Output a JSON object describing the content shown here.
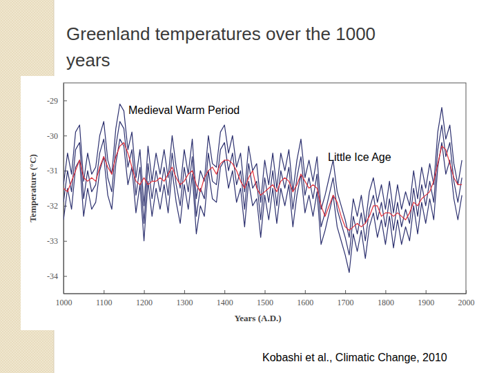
{
  "chart_data": {
    "type": "line",
    "title": "Greenland temperatures over the 1000 years",
    "y_label": "Temperature (°C)",
    "x_label": "Years (A.D.)",
    "annotations": [
      "Medieval Warm Period",
      "Little Ice Age"
    ],
    "source": "Kobashi et al., Climatic Change, 2010",
    "xlim": [
      1000,
      2000
    ],
    "xticks": [
      1000,
      1100,
      1200,
      1300,
      1400,
      1500,
      1600,
      1700,
      1800,
      1900,
      2000
    ],
    "ylim": [
      -34.5,
      -28.5
    ],
    "yticks": [
      -34,
      -33,
      -32,
      -31,
      -30,
      -29
    ],
    "grid": false,
    "x": [
      1000,
      1010,
      1020,
      1030,
      1040,
      1050,
      1060,
      1070,
      1080,
      1090,
      1100,
      1110,
      1120,
      1130,
      1140,
      1150,
      1160,
      1170,
      1180,
      1190,
      1200,
      1210,
      1220,
      1230,
      1240,
      1250,
      1260,
      1270,
      1280,
      1290,
      1300,
      1310,
      1320,
      1330,
      1340,
      1350,
      1360,
      1370,
      1380,
      1390,
      1400,
      1410,
      1420,
      1430,
      1440,
      1450,
      1460,
      1470,
      1480,
      1490,
      1500,
      1510,
      1520,
      1530,
      1540,
      1550,
      1560,
      1570,
      1580,
      1590,
      1600,
      1610,
      1620,
      1630,
      1640,
      1650,
      1660,
      1670,
      1680,
      1690,
      1700,
      1710,
      1720,
      1730,
      1740,
      1750,
      1760,
      1770,
      1780,
      1790,
      1800,
      1810,
      1820,
      1830,
      1840,
      1850,
      1860,
      1870,
      1880,
      1890,
      1900,
      1910,
      1920,
      1930,
      1940,
      1950,
      1960,
      1970,
      1980,
      1990
    ],
    "series": [
      {
        "color": "#2b2f6e",
        "values": [
          -31.4,
          -30.5,
          -31.1,
          -29.9,
          -29.7,
          -31.3,
          -30.5,
          -31.1,
          -30.9,
          -30.0,
          -29.6,
          -30.7,
          -31.1,
          -29.8,
          -29.1,
          -29.3,
          -30.4,
          -29.9,
          -31.2,
          -30.4,
          -32.0,
          -30.3,
          -31.3,
          -30.5,
          -31.1,
          -30.4,
          -31.2,
          -30.0,
          -30.9,
          -31.5,
          -30.4,
          -31.1,
          -30.1,
          -31.8,
          -31.0,
          -31.3,
          -30.0,
          -30.8,
          -30.9,
          -29.9,
          -29.7,
          -30.5,
          -30.0,
          -30.9,
          -30.5,
          -31.6,
          -30.3,
          -31.0,
          -30.8,
          -31.9,
          -30.7,
          -31.4,
          -30.5,
          -31.5,
          -30.5,
          -31.0,
          -30.4,
          -31.6,
          -30.7,
          -30.1,
          -31.2,
          -30.7,
          -31.3,
          -30.6,
          -32.1,
          -31.7,
          -31.2,
          -30.7,
          -31.6,
          -32.0,
          -32.4,
          -32.9,
          -31.8,
          -32.3,
          -31.7,
          -32.5,
          -31.6,
          -31.2,
          -31.9,
          -31.4,
          -32.1,
          -31.3,
          -32.2,
          -31.4,
          -32.1,
          -31.6,
          -32.0,
          -31.0,
          -31.8,
          -30.9,
          -31.5,
          -30.8,
          -31.4,
          -29.9,
          -29.2,
          -30.1,
          -29.7,
          -30.8,
          -31.4,
          -30.7
        ]
      },
      {
        "color": "#2b2f6e",
        "values": [
          -31.9,
          -31.0,
          -31.6,
          -30.4,
          -30.2,
          -31.8,
          -31.0,
          -31.6,
          -31.4,
          -30.5,
          -30.1,
          -31.2,
          -31.6,
          -30.3,
          -29.6,
          -29.8,
          -30.9,
          -30.4,
          -31.7,
          -30.9,
          -32.5,
          -30.8,
          -31.8,
          -31.0,
          -31.6,
          -30.9,
          -31.7,
          -30.5,
          -31.4,
          -32.0,
          -30.9,
          -31.6,
          -30.6,
          -32.3,
          -31.5,
          -31.8,
          -30.5,
          -31.3,
          -31.4,
          -30.4,
          -30.2,
          -31.0,
          -30.5,
          -31.4,
          -31.0,
          -32.1,
          -30.8,
          -31.5,
          -31.3,
          -32.4,
          -31.2,
          -31.9,
          -31.0,
          -32.0,
          -31.0,
          -31.5,
          -30.9,
          -32.1,
          -31.2,
          -30.6,
          -31.7,
          -31.2,
          -31.8,
          -31.1,
          -32.6,
          -32.2,
          -31.7,
          -31.2,
          -32.1,
          -32.5,
          -32.9,
          -33.4,
          -32.3,
          -32.8,
          -32.2,
          -33.0,
          -32.1,
          -31.7,
          -32.4,
          -31.9,
          -32.6,
          -31.8,
          -32.7,
          -31.9,
          -32.6,
          -32.1,
          -32.5,
          -31.5,
          -32.3,
          -31.4,
          -32.0,
          -31.3,
          -31.9,
          -30.4,
          -29.7,
          -30.6,
          -30.2,
          -31.3,
          -31.9,
          -31.2
        ]
      },
      {
        "color": "#2b2f6e",
        "values": [
          -32.4,
          -31.5,
          -32.1,
          -30.9,
          -30.7,
          -32.3,
          -31.5,
          -32.1,
          -31.9,
          -31.0,
          -30.6,
          -31.7,
          -32.1,
          -30.8,
          -30.1,
          -30.3,
          -31.4,
          -30.9,
          -32.2,
          -31.4,
          -33.0,
          -31.3,
          -32.3,
          -31.5,
          -32.1,
          -31.4,
          -32.2,
          -31.0,
          -31.9,
          -32.5,
          -31.4,
          -32.1,
          -31.1,
          -32.8,
          -32.0,
          -32.3,
          -31.0,
          -31.8,
          -31.9,
          -30.9,
          -30.7,
          -31.5,
          -31.0,
          -31.9,
          -31.5,
          -32.6,
          -31.3,
          -32.0,
          -31.8,
          -32.9,
          -31.7,
          -32.4,
          -31.5,
          -32.5,
          -31.5,
          -32.0,
          -31.4,
          -32.6,
          -31.7,
          -31.1,
          -32.2,
          -31.7,
          -32.3,
          -31.6,
          -33.1,
          -32.7,
          -32.2,
          -31.7,
          -32.6,
          -33.0,
          -33.4,
          -33.9,
          -32.8,
          -33.3,
          -32.7,
          -33.5,
          -32.6,
          -32.2,
          -32.9,
          -32.4,
          -33.1,
          -32.3,
          -33.2,
          -32.4,
          -33.1,
          -32.6,
          -33.0,
          -32.0,
          -32.8,
          -31.9,
          -32.5,
          -31.8,
          -32.4,
          -30.9,
          -30.2,
          -31.1,
          -30.7,
          -31.8,
          -32.4,
          -31.7
        ]
      },
      {
        "color": "#e0303a",
        "values": [
          -31.5,
          -31.6,
          -31.3,
          -31.0,
          -30.7,
          -31.2,
          -31.3,
          -31.2,
          -31.3,
          -30.9,
          -30.6,
          -30.9,
          -31.1,
          -30.6,
          -30.3,
          -30.2,
          -30.5,
          -30.9,
          -31.3,
          -31.4,
          -31.2,
          -31.4,
          -31.3,
          -31.3,
          -31.2,
          -31.3,
          -31.1,
          -30.9,
          -31.2,
          -31.4,
          -31.3,
          -31.1,
          -31.0,
          -31.4,
          -31.6,
          -31.2,
          -31.0,
          -30.9,
          -31.1,
          -30.8,
          -30.7,
          -30.7,
          -30.8,
          -31.0,
          -31.3,
          -31.5,
          -31.2,
          -31.0,
          -31.5,
          -31.7,
          -31.6,
          -31.5,
          -31.4,
          -31.6,
          -31.3,
          -31.2,
          -31.3,
          -31.6,
          -31.4,
          -31.1,
          -31.3,
          -31.5,
          -31.4,
          -31.5,
          -32.0,
          -32.3,
          -32.0,
          -31.7,
          -31.9,
          -32.3,
          -32.6,
          -32.7,
          -32.6,
          -32.5,
          -32.6,
          -32.5,
          -32.3,
          -32.0,
          -32.0,
          -32.3,
          -32.2,
          -32.2,
          -32.3,
          -32.2,
          -32.3,
          -32.4,
          -32.2,
          -31.9,
          -32.0,
          -31.8,
          -31.7,
          -31.6,
          -31.3,
          -30.8,
          -30.3,
          -30.4,
          -30.8,
          -31.2,
          -31.4,
          -31.4
        ]
      }
    ]
  }
}
